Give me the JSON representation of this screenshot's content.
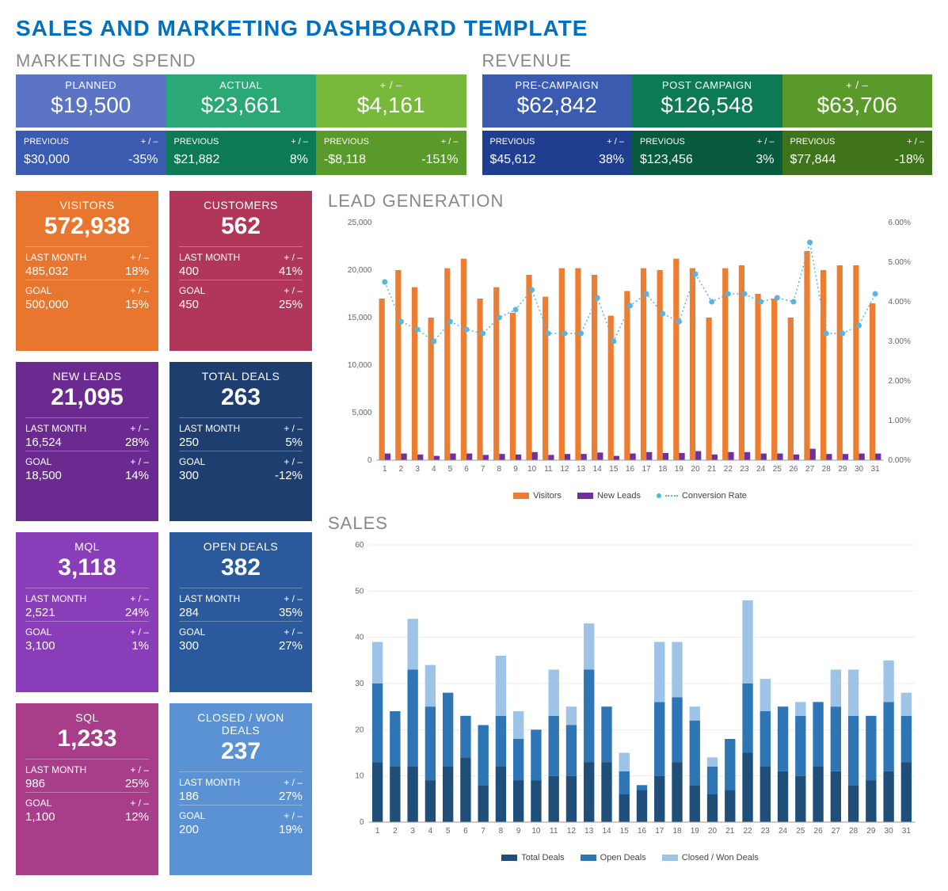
{
  "title": "SALES AND MARKETING DASHBOARD TEMPLATE",
  "marketing_spend": {
    "title": "MARKETING SPEND",
    "cards": [
      {
        "label": "PLANNED",
        "value": "$19,500",
        "bg": "#5b75c4",
        "prev": "$30,000",
        "delta": "-35%",
        "sub_bg": "#3a5bb0"
      },
      {
        "label": "ACTUAL",
        "value": "$23,661",
        "bg": "#2aa876",
        "prev": "$21,882",
        "delta": "8%",
        "sub_bg": "#0d7a56"
      },
      {
        "label": "+ / –",
        "value": "$4,161",
        "bg": "#78b93c",
        "prev": "-$8,118",
        "delta": "-151%",
        "sub_bg": "#5a9a2a"
      }
    ]
  },
  "revenue": {
    "title": "REVENUE",
    "cards": [
      {
        "label": "PRE-CAMPAIGN",
        "value": "$62,842",
        "bg": "#3a5bb0",
        "prev": "$45,612",
        "delta": "38%",
        "sub_bg": "#1f3e8f"
      },
      {
        "label": "POST CAMPAIGN",
        "value": "$126,548",
        "bg": "#0d7a56",
        "prev": "$123,456",
        "delta": "3%",
        "sub_bg": "#085a3e"
      },
      {
        "label": "+ / –",
        "value": "$63,706",
        "bg": "#5a9a2a",
        "prev": "$77,844",
        "delta": "-18%",
        "sub_bg": "#3f741a"
      }
    ]
  },
  "prev_label": "PREVIOUS",
  "delta_label": "+ / –",
  "kpis": [
    {
      "title": "VISITORS",
      "value": "572,938",
      "bg": "#e8762f",
      "last": "485,032",
      "last_d": "18%",
      "goal": "500,000",
      "goal_d": "15%"
    },
    {
      "title": "CUSTOMERS",
      "value": "562",
      "bg": "#b0375a",
      "last": "400",
      "last_d": "41%",
      "goal": "450",
      "goal_d": "25%"
    },
    {
      "title": "NEW LEADS",
      "value": "21,095",
      "bg": "#6b2a8f",
      "last": "16,524",
      "last_d": "28%",
      "goal": "18,500",
      "goal_d": "14%"
    },
    {
      "title": "TOTAL DEALS",
      "value": "263",
      "bg": "#1f3e70",
      "last": "250",
      "last_d": "5%",
      "goal": "300",
      "goal_d": "-12%"
    },
    {
      "title": "MQL",
      "value": "3,118",
      "bg": "#8a3db8",
      "last": "2,521",
      "last_d": "24%",
      "goal": "3,100",
      "goal_d": "1%"
    },
    {
      "title": "OPEN DEALS",
      "value": "382",
      "bg": "#2a5a9c",
      "last": "284",
      "last_d": "35%",
      "goal": "300",
      "goal_d": "27%"
    },
    {
      "title": "SQL",
      "value": "1,233",
      "bg": "#a83d8a",
      "last": "986",
      "last_d": "25%",
      "goal": "1,100",
      "goal_d": "12%"
    },
    {
      "title": "CLOSED / WON DEALS",
      "value": "237",
      "bg": "#5a92d4",
      "last": "186",
      "last_d": "27%",
      "goal": "200",
      "goal_d": "19%"
    }
  ],
  "last_month_label": "LAST MONTH",
  "goal_label": "GOAL",
  "lead_gen": {
    "title": "LEAD GENERATION",
    "type": "bar+line",
    "days": [
      1,
      2,
      3,
      4,
      5,
      6,
      7,
      8,
      9,
      10,
      11,
      12,
      13,
      14,
      15,
      16,
      17,
      18,
      19,
      20,
      21,
      22,
      23,
      24,
      25,
      26,
      27,
      28,
      29,
      30,
      31
    ],
    "visitors": [
      17000,
      20000,
      18200,
      15000,
      20200,
      21200,
      17000,
      18200,
      15500,
      19500,
      17200,
      20200,
      20200,
      19500,
      15200,
      17800,
      20200,
      20000,
      21200,
      20200,
      15000,
      20200,
      20500,
      17500,
      17000,
      15000,
      22000,
      20000,
      20500,
      20500,
      16500
    ],
    "new_leads": [
      700,
      700,
      600,
      450,
      700,
      700,
      550,
      650,
      600,
      850,
      550,
      650,
      650,
      800,
      450,
      700,
      850,
      750,
      750,
      950,
      600,
      850,
      850,
      700,
      700,
      600,
      1200,
      650,
      650,
      700,
      700
    ],
    "conversion": [
      4.5,
      3.5,
      3.3,
      3.0,
      3.5,
      3.3,
      3.2,
      3.6,
      3.8,
      4.3,
      3.2,
      3.2,
      3.2,
      4.1,
      3.0,
      3.9,
      4.2,
      3.7,
      3.5,
      4.7,
      4.0,
      4.2,
      4.2,
      4.0,
      4.1,
      4.0,
      5.5,
      3.2,
      3.2,
      3.4,
      4.2
    ],
    "y_left_max": 25000,
    "y_left_step": 5000,
    "y_right_max": 6.0,
    "y_right_step": 1.0,
    "bar_color_visitors": "#ed7d31",
    "bar_color_leads": "#7030a0",
    "line_color": "#5ab4e0",
    "legend": [
      "Visitors",
      "New Leads",
      "Conversion Rate"
    ]
  },
  "sales": {
    "title": "SALES",
    "type": "stacked-bar",
    "days": [
      1,
      2,
      3,
      4,
      5,
      6,
      7,
      8,
      9,
      10,
      11,
      12,
      13,
      14,
      15,
      16,
      17,
      18,
      19,
      20,
      21,
      22,
      23,
      24,
      25,
      26,
      27,
      28,
      29,
      30,
      31
    ],
    "total": [
      13,
      12,
      12,
      9,
      12,
      14,
      8,
      12,
      9,
      9,
      10,
      10,
      13,
      13,
      6,
      7,
      10,
      13,
      8,
      6,
      7,
      15,
      12,
      11,
      10,
      12,
      11,
      8,
      9,
      11,
      13
    ],
    "open": [
      17,
      12,
      21,
      16,
      16,
      9,
      13,
      11,
      9,
      11,
      13,
      11,
      20,
      12,
      5,
      1,
      16,
      14,
      14,
      6,
      11,
      15,
      12,
      14,
      13,
      14,
      14,
      15,
      14,
      15,
      10
    ],
    "closed": [
      9,
      0,
      11,
      9,
      0,
      0,
      0,
      13,
      6,
      0,
      10,
      4,
      10,
      0,
      4,
      0,
      13,
      12,
      3,
      2,
      0,
      18,
      7,
      0,
      3,
      0,
      8,
      10,
      0,
      9,
      5
    ],
    "y_max": 60,
    "y_step": 10,
    "color_total": "#1f4e79",
    "color_open": "#2e75b6",
    "color_closed": "#9dc3e6",
    "legend": [
      "Total Deals",
      "Open Deals",
      "Closed / Won Deals"
    ]
  }
}
